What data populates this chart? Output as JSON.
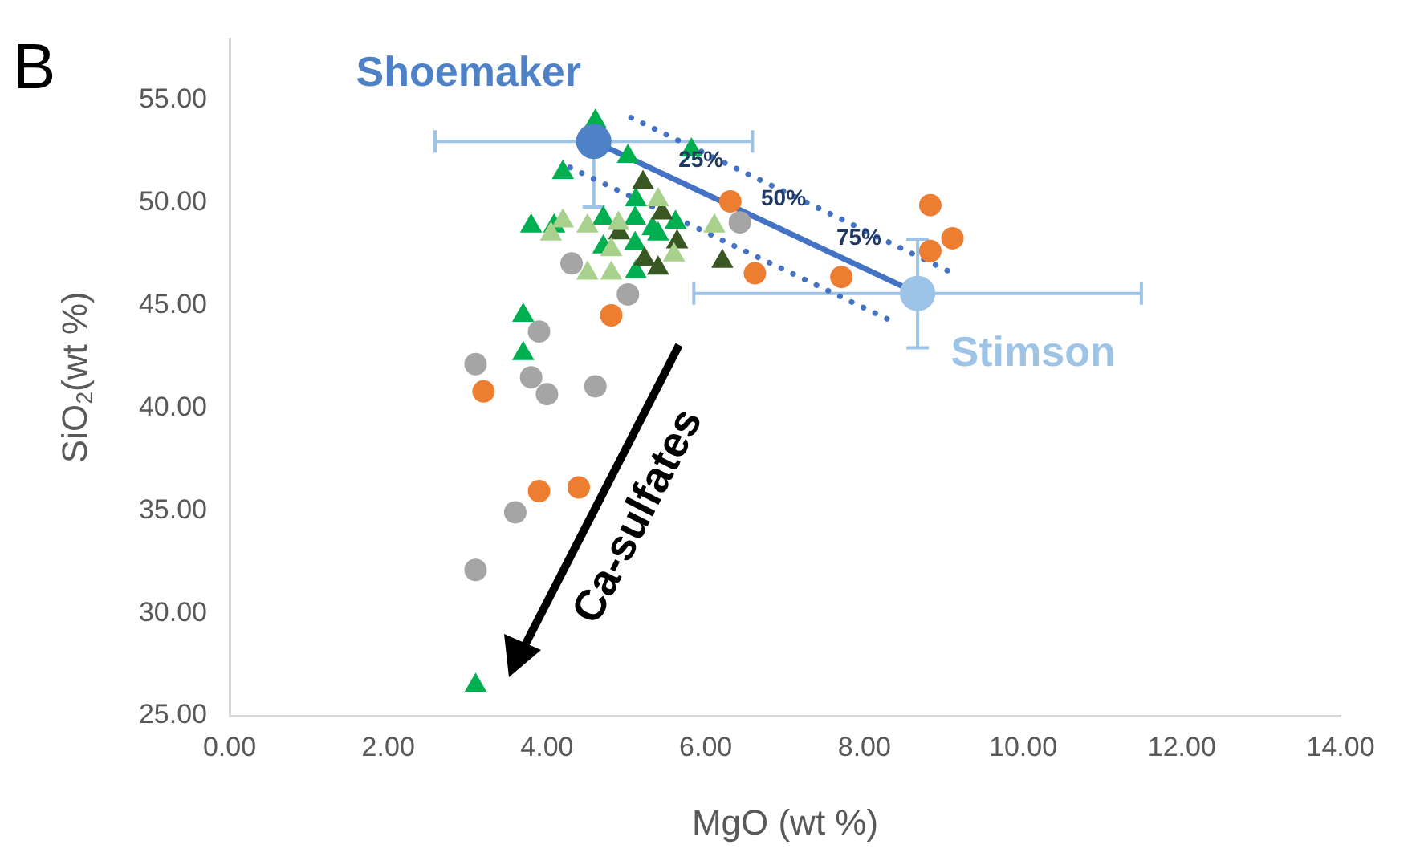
{
  "chart_data": {
    "type": "scatter",
    "xlabel": "MgO (wt %)",
    "ylabel": "SiO$_{2}$(wt %)",
    "xlim": [
      0,
      14
    ],
    "ylim": [
      25,
      58
    ],
    "xticks": [
      {
        "value": 0,
        "label": "0.00"
      },
      {
        "value": 2,
        "label": "2.00"
      },
      {
        "value": 4,
        "label": "4.00"
      },
      {
        "value": 6,
        "label": "6.00"
      },
      {
        "value": 8,
        "label": "8.00"
      },
      {
        "value": 10,
        "label": "10.00"
      },
      {
        "value": 12,
        "label": "12.00"
      },
      {
        "value": 14,
        "label": "14.00"
      }
    ],
    "yticks": [
      {
        "value": 25,
        "label": "25.00"
      },
      {
        "value": 30,
        "label": "30.00"
      },
      {
        "value": 35,
        "label": "35.00"
      },
      {
        "value": 40,
        "label": "40.00"
      },
      {
        "value": 45,
        "label": "45.00"
      },
      {
        "value": 50,
        "label": "50.00"
      },
      {
        "value": 55,
        "label": "55.00"
      }
    ],
    "grid": false,
    "legend": false,
    "annotations": [
      "B",
      "Ca-sulfates",
      {
        "text": "25%",
        "x": 5.94,
        "y": 52.07
      },
      {
        "text": "50%",
        "x": 6.98,
        "y": 50.17
      },
      {
        "text": "75%",
        "x": 7.93,
        "y": 48.28
      }
    ],
    "series": [
      {
        "type": "line",
        "color": "#4472c4",
        "line_style": "dotted",
        "marker": "none",
        "x": [
          5.06,
          9.08
        ],
        "values": [
          54.16,
          46.64
        ]
      },
      {
        "type": "line",
        "color": "#4472c4",
        "line_style": "dotted",
        "marker": "none",
        "x": [
          4.29,
          8.29
        ],
        "values": [
          51.73,
          44.34
        ]
      },
      {
        "type": "line",
        "color": "#4472c4",
        "line_style": "solid",
        "marker": "none",
        "x": [
          4.59,
          8.67
        ],
        "values": [
          53.0,
          45.59
        ]
      },
      {
        "color": "#a5a5a5",
        "marker": "circle",
        "x": [
          6.43,
          4.31,
          5.02,
          3.9,
          3.1,
          3.8,
          4.0,
          4.61,
          3.6,
          3.1
        ],
        "values": [
          49.05,
          47.05,
          45.54,
          43.73,
          42.14,
          41.5,
          40.68,
          41.06,
          34.92,
          32.11
        ]
      },
      {
        "color": "#ed7d31",
        "marker": "circle",
        "x": [
          6.31,
          6.62,
          4.81,
          8.83,
          9.11,
          8.83,
          7.71,
          3.2,
          3.9,
          4.4
        ],
        "values": [
          50.07,
          46.57,
          44.52,
          49.89,
          48.28,
          47.66,
          46.39,
          40.81,
          35.95,
          36.13
        ]
      },
      {
        "color": "#a9d18e",
        "marker": "triangle",
        "x": [
          4.05,
          4.51,
          4.2,
          4.81,
          4.51,
          4.81,
          6.11,
          4.9,
          5.4,
          5.6
        ],
        "values": [
          48.48,
          48.87,
          49.12,
          47.72,
          46.57,
          46.57,
          48.87,
          49.0,
          50.15,
          47.46
        ]
      },
      {
        "color": "#385723",
        "marker": "triangle",
        "x": [
          5.21,
          5.45,
          4.91,
          5.64,
          5.23,
          5.4,
          6.21
        ],
        "values": [
          50.99,
          49.51,
          48.54,
          48.1,
          47.26,
          46.82,
          47.15
        ]
      },
      {
        "color": "#00b050",
        "marker": "triangle",
        "x": [
          4.61,
          5.82,
          5.02,
          4.2,
          5.12,
          3.8,
          4.09,
          4.71,
          5.11,
          5.33,
          5.62,
          4.71,
          5.11,
          5.12,
          5.4,
          3.7,
          3.7,
          3.1
        ],
        "values": [
          53.99,
          52.58,
          52.27,
          51.48,
          50.15,
          48.87,
          48.87,
          49.25,
          49.25,
          48.74,
          49.05,
          47.85,
          48.02,
          46.64,
          48.48,
          44.52,
          42.65,
          26.48
        ]
      },
      {
        "name": "Shoemaker",
        "color": "#4f81c7",
        "marker": "circle",
        "x": [
          4.59
        ],
        "values": [
          53.0
        ],
        "xerrors": [
          2.0
        ],
        "errors": [
          [
            49.8,
            53.0
          ]
        ]
      },
      {
        "name": "Stimson",
        "color": "#9dc3e6",
        "marker": "circle",
        "x": [
          8.67
        ],
        "values": [
          45.59
        ],
        "xerrors": [
          2.82
        ],
        "errors": [
          2.65
        ]
      }
    ]
  }
}
